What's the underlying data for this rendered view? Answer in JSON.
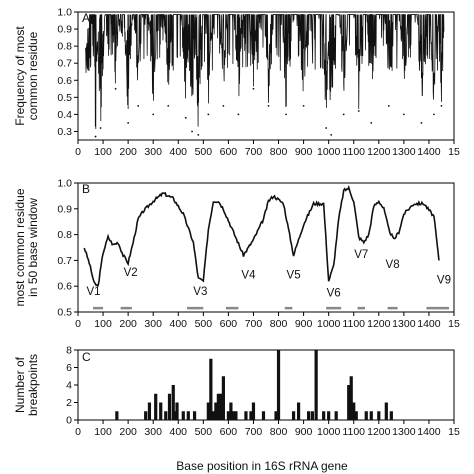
{
  "xlabel": "Base position in 16S rRNA gene",
  "x_ticks": [
    "0",
    "100",
    "200",
    "300",
    "400",
    "500",
    "600",
    "700",
    "800",
    "900",
    "1000",
    "1100",
    "1200",
    "1300",
    "1400",
    "15"
  ],
  "chart_data": [
    {
      "panel": "A",
      "type": "line",
      "ylabel": [
        "Frequency of most",
        "common residue"
      ],
      "ylim": [
        0.25,
        1.0
      ],
      "xlim": [
        0,
        1500
      ],
      "y_ticks": [
        "1.0",
        "0.9",
        "0.8",
        "0.7",
        "0.6",
        "0.5",
        "0.4",
        "0.3"
      ],
      "y_tick_values": [
        1.0,
        0.9,
        0.8,
        0.7,
        0.6,
        0.5,
        0.4,
        0.3
      ],
      "grid": false,
      "valleys": [
        {
          "x": 70,
          "y": 0.27
        },
        {
          "x": 90,
          "y": 0.32
        },
        {
          "x": 150,
          "y": 0.55
        },
        {
          "x": 200,
          "y": 0.35
        },
        {
          "x": 240,
          "y": 0.45
        },
        {
          "x": 300,
          "y": 0.4
        },
        {
          "x": 360,
          "y": 0.45
        },
        {
          "x": 430,
          "y": 0.38
        },
        {
          "x": 455,
          "y": 0.3
        },
        {
          "x": 480,
          "y": 0.28
        },
        {
          "x": 520,
          "y": 0.4
        },
        {
          "x": 580,
          "y": 0.45
        },
        {
          "x": 640,
          "y": 0.4
        },
        {
          "x": 700,
          "y": 0.55
        },
        {
          "x": 760,
          "y": 0.45
        },
        {
          "x": 830,
          "y": 0.4
        },
        {
          "x": 900,
          "y": 0.45
        },
        {
          "x": 990,
          "y": 0.32
        },
        {
          "x": 1010,
          "y": 0.28
        },
        {
          "x": 1060,
          "y": 0.4
        },
        {
          "x": 1120,
          "y": 0.42
        },
        {
          "x": 1170,
          "y": 0.35
        },
        {
          "x": 1240,
          "y": 0.45
        },
        {
          "x": 1300,
          "y": 0.4
        },
        {
          "x": 1370,
          "y": 0.35
        },
        {
          "x": 1420,
          "y": 0.4
        },
        {
          "x": 1450,
          "y": 0.45
        }
      ]
    },
    {
      "panel": "B",
      "type": "line",
      "ylabel": [
        "most common residue",
        "in 50 base window"
      ],
      "ylim": [
        0.5,
        1.0
      ],
      "xlim": [
        0,
        1500
      ],
      "y_ticks": [
        "1.0",
        "0.9",
        "0.8",
        "0.7",
        "0.6",
        "0.5"
      ],
      "y_tick_values": [
        1.0,
        0.9,
        0.8,
        0.7,
        0.6,
        0.5
      ],
      "grid": false,
      "series": [
        {
          "x": [
            25,
            45,
            65,
            80,
            100,
            120,
            140,
            160,
            180,
            200,
            220,
            240,
            260,
            300,
            340,
            380,
            420,
            460,
            480,
            500,
            520,
            540,
            560,
            580,
            620,
            660,
            700,
            740,
            760,
            780,
            820,
            860,
            900,
            940,
            960,
            980,
            1000,
            1020,
            1040,
            1060,
            1080,
            1100,
            1120,
            1140,
            1160,
            1180,
            1200,
            1220,
            1240,
            1260,
            1280,
            1300,
            1340,
            1380,
            1420,
            1440
          ],
          "y": [
            0.75,
            0.69,
            0.61,
            0.6,
            0.73,
            0.79,
            0.76,
            0.77,
            0.72,
            0.69,
            0.77,
            0.86,
            0.89,
            0.93,
            0.96,
            0.94,
            0.88,
            0.77,
            0.63,
            0.62,
            0.82,
            0.93,
            0.93,
            0.9,
            0.81,
            0.72,
            0.78,
            0.86,
            0.93,
            0.95,
            0.92,
            0.72,
            0.84,
            0.92,
            0.92,
            0.92,
            0.62,
            0.68,
            0.86,
            0.97,
            0.98,
            0.93,
            0.79,
            0.77,
            0.8,
            0.91,
            0.93,
            0.9,
            0.82,
            0.78,
            0.81,
            0.88,
            0.92,
            0.92,
            0.87,
            0.7
          ]
        }
      ],
      "region_labels": [
        {
          "text": "V1",
          "x": 62,
          "y": 0.565
        },
        {
          "text": "V2",
          "x": 210,
          "y": 0.64
        },
        {
          "text": "V3",
          "x": 488,
          "y": 0.565
        },
        {
          "text": "V4",
          "x": 680,
          "y": 0.63
        },
        {
          "text": "V5",
          "x": 860,
          "y": 0.63
        },
        {
          "text": "V6",
          "x": 1020,
          "y": 0.56
        },
        {
          "text": "V7",
          "x": 1130,
          "y": 0.71
        },
        {
          "text": "V8",
          "x": 1255,
          "y": 0.67
        },
        {
          "text": "V9",
          "x": 1460,
          "y": 0.61
        }
      ],
      "region_segments": [
        [
          60,
          100
        ],
        [
          170,
          215
        ],
        [
          435,
          500
        ],
        [
          590,
          640
        ],
        [
          825,
          855
        ],
        [
          990,
          1050
        ],
        [
          1115,
          1145
        ],
        [
          1235,
          1275
        ],
        [
          1390,
          1480
        ]
      ],
      "segment_level": 0.515
    },
    {
      "panel": "C",
      "type": "bar",
      "ylabel": [
        "Number of",
        "breakpoints"
      ],
      "ylim": [
        0,
        8
      ],
      "xlim": [
        0,
        1500
      ],
      "y_ticks": [
        "8",
        "6",
        "4",
        "2",
        "0"
      ],
      "y_tick_values": [
        8,
        6,
        4,
        2,
        0
      ],
      "grid": false,
      "x": [
        155,
        270,
        285,
        310,
        330,
        350,
        365,
        380,
        390,
        395,
        420,
        440,
        465,
        520,
        530,
        540,
        550,
        560,
        570,
        580,
        600,
        610,
        620,
        630,
        670,
        690,
        700,
        740,
        790,
        800,
        860,
        880,
        920,
        935,
        950,
        980,
        1000,
        1030,
        1080,
        1090,
        1100,
        1110,
        1150,
        1170,
        1200,
        1230,
        1250
      ],
      "values": [
        1,
        1,
        2,
        3,
        2,
        1,
        3,
        4,
        1,
        2,
        1,
        1,
        1,
        2,
        7,
        1,
        2,
        3,
        3,
        5,
        1,
        2,
        1,
        1,
        1,
        1,
        2,
        1,
        1,
        8,
        1,
        2,
        1,
        1,
        8,
        1,
        1,
        1,
        4,
        5,
        2,
        1,
        1,
        1,
        1,
        2,
        1
      ]
    }
  ]
}
